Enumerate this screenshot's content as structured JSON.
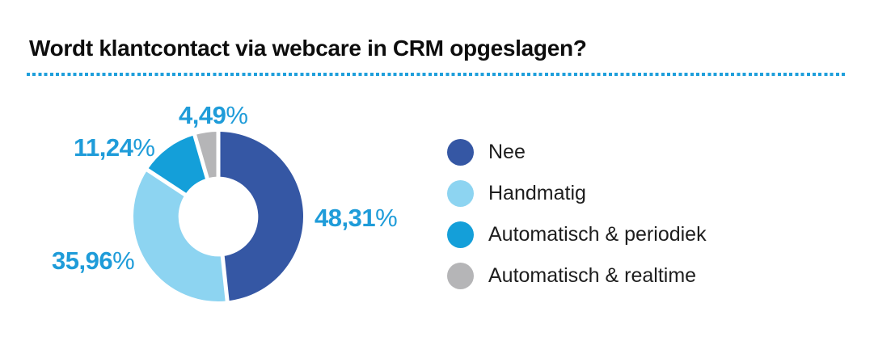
{
  "header": {
    "title": "Wordt klantcontact via webcare in CRM opgeslagen?",
    "divider_color": "#1f9fdb"
  },
  "chart_data": {
    "type": "pie",
    "donut": true,
    "title": "Wordt klantcontact via webcare in CRM opgeslagen?",
    "start_angle_deg": 0,
    "clockwise": true,
    "hole_ratio": 0.47,
    "legend_position": "right",
    "percent_sign": "%",
    "value_label_color": "#1f9cd9",
    "slices": [
      {
        "label": "Nee",
        "value": 48.31,
        "value_label": "48,31",
        "color": "#3557a4"
      },
      {
        "label": "Handmatig",
        "value": 35.96,
        "value_label": "35,96",
        "color": "#8dd4f1"
      },
      {
        "label": "Automatisch & periodiek",
        "value": 11.24,
        "value_label": "11,24",
        "color": "#149fd9"
      },
      {
        "label": "Automatisch & realtime",
        "value": 4.49,
        "value_label": "4,49",
        "color": "#b5b5b7"
      }
    ]
  }
}
